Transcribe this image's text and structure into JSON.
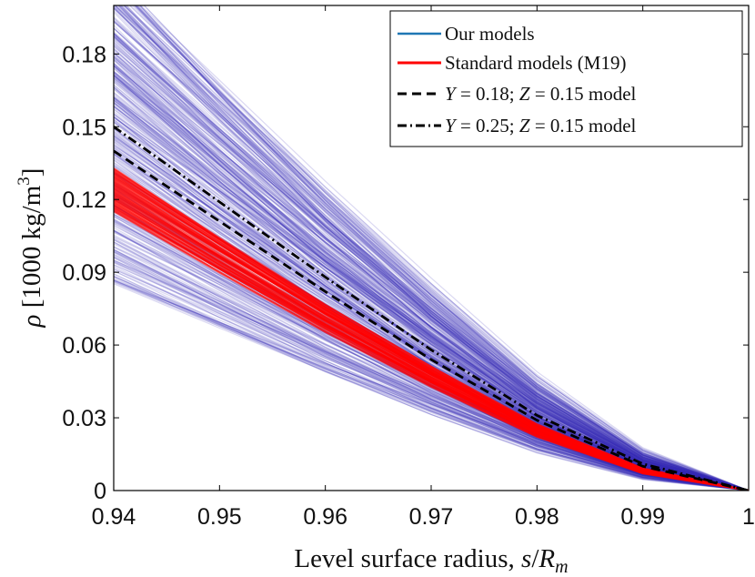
{
  "chart_data": {
    "type": "line",
    "title": "",
    "xlabel": "Level surface radius, s/R_m",
    "ylabel": "ρ [1000 kg/m³]",
    "xlim": [
      0.94,
      1.0
    ],
    "ylim": [
      0,
      0.2
    ],
    "xticks": [
      0.94,
      0.95,
      0.96,
      0.97,
      0.98,
      0.99,
      1
    ],
    "xtick_labels": [
      "0.94",
      "0.95",
      "0.96",
      "0.97",
      "0.98",
      "0.99",
      "1"
    ],
    "yticks": [
      0,
      0.03,
      0.06,
      0.09,
      0.12,
      0.15,
      0.18
    ],
    "ytick_labels": [
      "0",
      "0.03",
      "0.06",
      "0.09",
      "0.12",
      "0.15",
      "0.18"
    ],
    "legend_position": "top-right",
    "grid": false,
    "series": [
      {
        "name": "Our models",
        "legend_label": "Our models",
        "color": "#3a2fb5",
        "legend_color": "#1f77b4",
        "style": "solid-ensemble",
        "ensemble_start_range": [
          0.085,
          0.2
        ],
        "ensemble_count": 420,
        "x": [
          0.94,
          0.95,
          0.96,
          0.97,
          0.98,
          0.99,
          1.0
        ],
        "shape": [
          1.0,
          0.785,
          0.575,
          0.38,
          0.2,
          0.065,
          0.0
        ]
      },
      {
        "name": "Standard models (M19)",
        "legend_label": "Standard models (M19)",
        "color": "#ff0000",
        "style": "solid-band",
        "band_start_range": [
          0.115,
          0.133
        ],
        "x": [
          0.94,
          0.95,
          0.96,
          0.97,
          0.98,
          0.99,
          1.0
        ],
        "shape": [
          1.0,
          0.785,
          0.575,
          0.38,
          0.2,
          0.065,
          0.0
        ]
      },
      {
        "name": "Y = 0.18; Z = 0.15 model",
        "legend_prefix": "Y",
        "legend_mid1": " = 0.18; ",
        "legend_mid2": "Z",
        "legend_suffix": " = 0.15 model",
        "color": "#000000",
        "style": "dashed",
        "x": [
          0.94,
          0.95,
          0.96,
          0.97,
          0.98,
          0.99,
          1.0
        ],
        "y": [
          0.14,
          0.111,
          0.082,
          0.054,
          0.029,
          0.01,
          0.0
        ]
      },
      {
        "name": "Y = 0.25; Z = 0.15 model",
        "legend_prefix": "Y",
        "legend_mid1": " = 0.25; ",
        "legend_mid2": "Z",
        "legend_suffix": " = 0.15 model",
        "color": "#000000",
        "style": "dashdot",
        "x": [
          0.94,
          0.95,
          0.96,
          0.97,
          0.98,
          0.99,
          1.0
        ],
        "y": [
          0.15,
          0.119,
          0.088,
          0.058,
          0.031,
          0.011,
          0.0
        ]
      }
    ]
  }
}
